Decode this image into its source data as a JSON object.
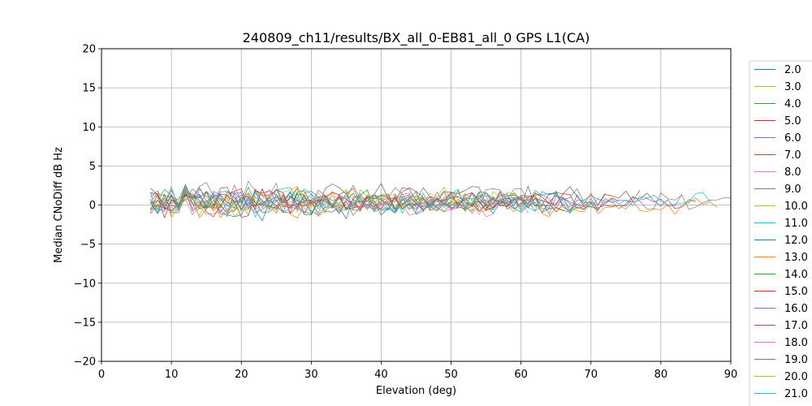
{
  "chart_data": {
    "type": "line",
    "title": "240809_ch11/results/BX_all_0-EB81_all_0 GPS L1(CA)",
    "xlabel": "Elevation (deg)",
    "ylabel": "Median CNoDiff dB Hz",
    "xlim": [
      0,
      90
    ],
    "ylim": [
      -20,
      20
    ],
    "xticks": [
      0,
      10,
      20,
      30,
      40,
      50,
      60,
      70,
      80,
      90
    ],
    "yticks": [
      -20,
      -15,
      -10,
      -5,
      0,
      5,
      10,
      15,
      20
    ],
    "grid": true,
    "legend": "right-outside",
    "series": [
      {
        "name": "2.0",
        "color": "#1f77b4",
        "x_range": [
          7,
          69
        ],
        "level": 0.3,
        "amp": 1.3,
        "seed": 2
      },
      {
        "name": "3.0",
        "color": "#bcbd22",
        "x_range": [
          7,
          57
        ],
        "level": 0.5,
        "amp": 1.2,
        "seed": 3
      },
      {
        "name": "4.0",
        "color": "#2ca02c",
        "x_range": [
          7,
          64
        ],
        "level": 0.2,
        "amp": 1.2,
        "seed": 4
      },
      {
        "name": "5.0",
        "color": "#d62728",
        "x_range": [
          7,
          74
        ],
        "level": 0.4,
        "amp": 1.2,
        "seed": 5
      },
      {
        "name": "6.0",
        "color": "#9467bd",
        "x_range": [
          7,
          68
        ],
        "level": 0.3,
        "amp": 1.2,
        "seed": 6
      },
      {
        "name": "7.0",
        "color": "#8c564b",
        "x_range": [
          7,
          85
        ],
        "level": 0.6,
        "amp": 1.3,
        "seed": 7
      },
      {
        "name": "8.0",
        "color": "#e377c2",
        "x_range": [
          7,
          61
        ],
        "level": 0.1,
        "amp": 1.3,
        "seed": 8
      },
      {
        "name": "9.0",
        "color": "#7f7f7f",
        "x_range": [
          7,
          72
        ],
        "level": 1.1,
        "amp": 1.4,
        "seed": 9
      },
      {
        "name": "10.0",
        "color": "#bcbd22",
        "x_range": [
          7,
          55
        ],
        "level": 0.4,
        "amp": 1.3,
        "seed": 10
      },
      {
        "name": "11.0",
        "color": "#17becf",
        "x_range": [
          7,
          63
        ],
        "level": 0.5,
        "amp": 1.3,
        "seed": 11
      },
      {
        "name": "12.0",
        "color": "#1f77b4",
        "x_range": [
          7,
          62
        ],
        "level": 0.0,
        "amp": 1.4,
        "seed": 12
      },
      {
        "name": "13.0",
        "color": "#ff7f0e",
        "x_range": [
          7,
          88
        ],
        "level": 0.0,
        "amp": 1.3,
        "seed": 13
      },
      {
        "name": "14.0",
        "color": "#2ca02c",
        "x_range": [
          7,
          71
        ],
        "level": 0.3,
        "amp": 1.2,
        "seed": 14
      },
      {
        "name": "15.0",
        "color": "#d62728",
        "x_range": [
          7,
          66
        ],
        "level": 0.3,
        "amp": 1.4,
        "seed": 15
      },
      {
        "name": "16.0",
        "color": "#9467bd",
        "x_range": [
          7,
          83
        ],
        "level": 0.4,
        "amp": 1.2,
        "seed": 16
      },
      {
        "name": "17.0",
        "color": "#8c564b",
        "x_range": [
          7,
          77
        ],
        "level": 1.2,
        "amp": 1.4,
        "seed": 17
      },
      {
        "name": "18.0",
        "color": "#e377c2",
        "x_range": [
          7,
          58
        ],
        "level": 0.2,
        "amp": 1.3,
        "seed": 18
      },
      {
        "name": "19.0",
        "color": "#7f7f7f",
        "x_range": [
          7,
          90
        ],
        "level": 0.5,
        "amp": 1.2,
        "seed": 19
      },
      {
        "name": "20.0",
        "color": "#bcbd22",
        "x_range": [
          7,
          60
        ],
        "level": 0.7,
        "amp": 1.3,
        "seed": 20
      },
      {
        "name": "21.0",
        "color": "#17becf",
        "x_range": [
          7,
          87
        ],
        "level": 0.6,
        "amp": 1.2,
        "seed": 21
      }
    ]
  }
}
